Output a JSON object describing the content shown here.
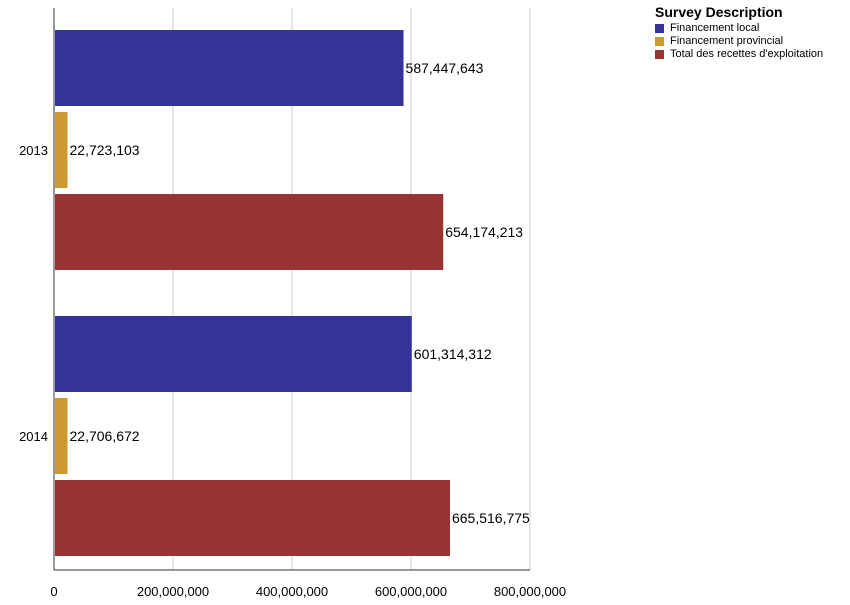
{
  "chart_data": {
    "type": "bar",
    "orientation": "horizontal",
    "categories": [
      "2013",
      "2014"
    ],
    "series": [
      {
        "name": "Financement local",
        "color": "#333399",
        "values": [
          587447643,
          601314312
        ],
        "labels": [
          "587,447,643",
          "601,314,312"
        ]
      },
      {
        "name": "Financement provincial",
        "color": "#cc9933",
        "values": [
          22723103,
          22706672
        ],
        "labels": [
          "22,723,103",
          "22,706,672"
        ]
      },
      {
        "name": "Total des recettes d'exploitation",
        "color": "#993333",
        "values": [
          654174213,
          665516775
        ],
        "labels": [
          "654,174,213",
          "665,516,775"
        ]
      }
    ],
    "xlim": [
      0,
      800000000
    ],
    "xticks": [
      0,
      200000000,
      400000000,
      600000000,
      800000000
    ],
    "xtick_labels": [
      "0",
      "200,000,000",
      "400,000,000",
      "600,000,000",
      "800,000,000"
    ],
    "grid": true,
    "legend": {
      "title": "Survey Description",
      "placement": "top-right"
    }
  }
}
